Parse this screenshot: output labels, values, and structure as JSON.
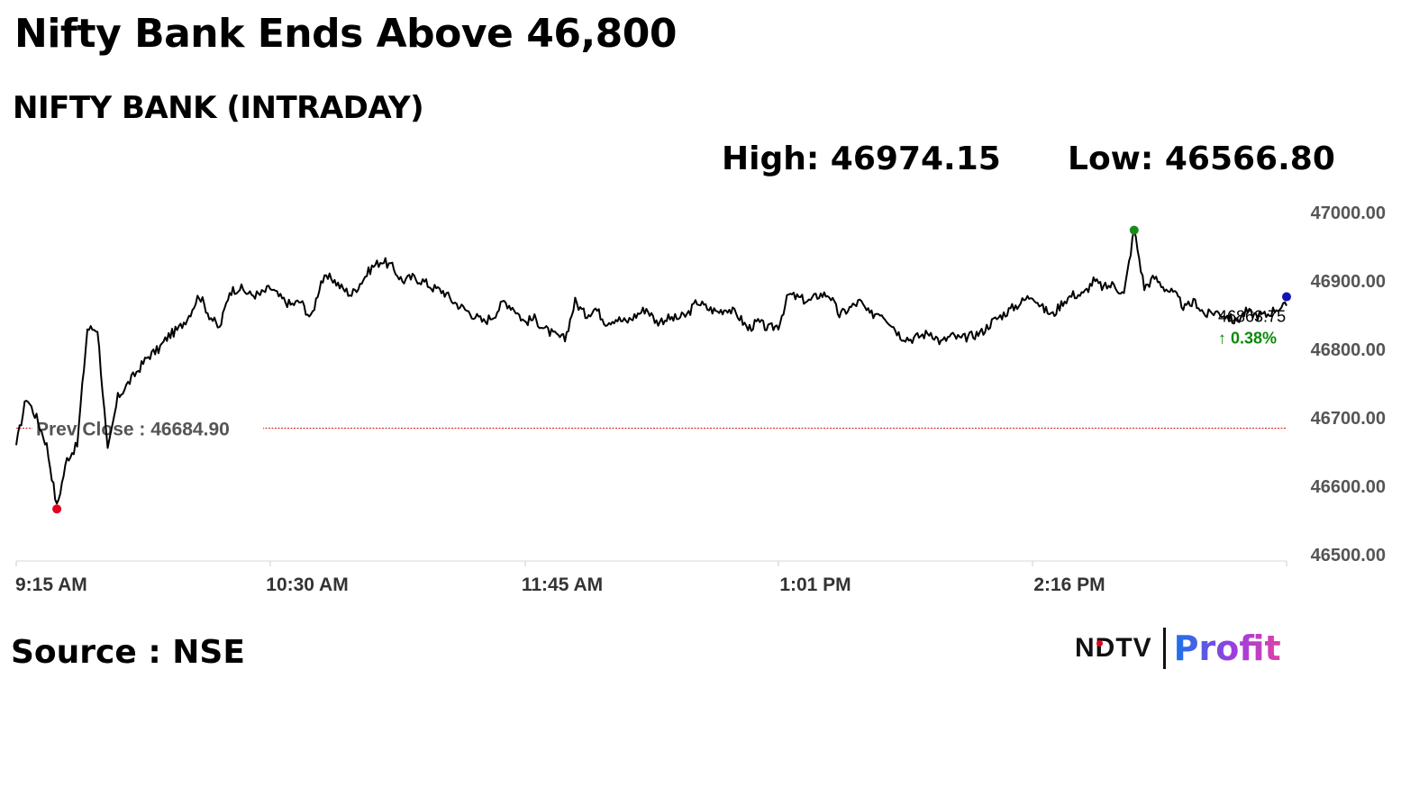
{
  "headline": "Nifty Bank Ends Above 46,800",
  "subhead": "NIFTY BANK (INTRADAY)",
  "stats": {
    "high": "High: 46974.15",
    "low": "Low: 46566.80"
  },
  "source": "Source : NSE",
  "logo": {
    "ndtv": "NDTV",
    "profit": "Profit"
  },
  "chart_data": {
    "type": "line",
    "title": "NIFTY BANK (INTRADAY)",
    "x_ticks": [
      "9:15 AM",
      "10:30 AM",
      "11:45 AM",
      "1:01 PM",
      "2:16 PM"
    ],
    "y_ticks": [
      "47000.00",
      "46900.00",
      "46800.00",
      "46700.00",
      "46600.00",
      "46500.00"
    ],
    "ylim": [
      46500,
      47000
    ],
    "prev_close": {
      "label": "Prev Close : 46684.90",
      "value": 46684.9
    },
    "last": {
      "price": "46863.75",
      "change": "↑ 0.38%",
      "value": 46863.75
    },
    "high_value": 46974.15,
    "low_value": 46566.8,
    "colors": {
      "line": "#000000",
      "high_marker": "#1a8a1a",
      "low_marker": "#e3001b",
      "last_marker": "#1414b4",
      "prev_close_line": "#d01818",
      "change": "#0a8a0a"
    },
    "series": [
      {
        "x": [
          "09:15",
          "09:18",
          "09:21",
          "09:24",
          "09:27",
          "09:30",
          "09:33",
          "09:36",
          "09:39",
          "09:42",
          "09:45",
          "09:48",
          "09:51",
          "09:54",
          "09:57",
          "10:00",
          "10:03",
          "10:06",
          "10:09",
          "10:12",
          "10:15",
          "10:18",
          "10:21",
          "10:24",
          "10:27",
          "10:30",
          "10:33",
          "10:36",
          "10:39",
          "10:42",
          "10:45",
          "10:48",
          "10:51",
          "10:54",
          "10:57",
          "11:00",
          "11:03",
          "11:06",
          "11:09",
          "11:12",
          "11:15",
          "11:18",
          "11:21",
          "11:24",
          "11:27",
          "11:30",
          "11:33",
          "11:36",
          "11:39",
          "11:42",
          "11:45",
          "11:48",
          "11:51",
          "11:54",
          "11:57",
          "12:00",
          "12:03",
          "12:06",
          "12:09",
          "12:12",
          "12:15",
          "12:18",
          "12:21",
          "12:24",
          "12:27",
          "12:30",
          "12:33",
          "12:36",
          "12:39",
          "12:42",
          "12:45",
          "12:48",
          "12:51",
          "12:54",
          "12:57",
          "13:00",
          "13:03",
          "13:06",
          "13:09",
          "13:12",
          "13:15",
          "13:18",
          "13:21",
          "13:24",
          "13:27",
          "13:30",
          "13:33",
          "13:36",
          "13:39",
          "13:42",
          "13:45",
          "13:48",
          "13:51",
          "13:54",
          "13:57",
          "14:00",
          "14:03",
          "14:06",
          "14:09",
          "14:12",
          "14:15",
          "14:18",
          "14:21",
          "14:24",
          "14:27",
          "14:30",
          "14:33",
          "14:36",
          "14:39",
          "14:42",
          "14:45",
          "14:48",
          "14:51",
          "14:54",
          "14:57",
          "15:00",
          "15:03",
          "15:06",
          "15:09",
          "15:12",
          "15:15",
          "15:18",
          "15:21",
          "15:24",
          "15:27",
          "15:30"
        ],
        "values": [
          46660,
          46730,
          46700,
          46660,
          46570,
          46640,
          46660,
          46830,
          46830,
          46650,
          46730,
          46750,
          46770,
          46790,
          46800,
          46820,
          46830,
          46850,
          46880,
          46850,
          46830,
          46885,
          46890,
          46880,
          46880,
          46890,
          46875,
          46865,
          46870,
          46845,
          46900,
          46905,
          46890,
          46880,
          46900,
          46920,
          46930,
          46920,
          46900,
          46905,
          46900,
          46890,
          46885,
          46870,
          46860,
          46850,
          46840,
          46850,
          46870,
          46860,
          46840,
          46845,
          46830,
          46820,
          46815,
          46870,
          46850,
          46860,
          46840,
          46845,
          46840,
          46850,
          46860,
          46840,
          46845,
          46845,
          46850,
          46870,
          46860,
          46855,
          46860,
          46850,
          46830,
          46840,
          46830,
          46835,
          46880,
          46875,
          46870,
          46880,
          46880,
          46850,
          46860,
          46870,
          46850,
          46855,
          46840,
          46820,
          46815,
          46820,
          46825,
          46810,
          46820,
          46815,
          46820,
          46825,
          46840,
          46850,
          46860,
          46870,
          46880,
          46860,
          46850,
          46870,
          46880,
          46880,
          46900,
          46890,
          46895,
          46880,
          46975,
          46890,
          46905,
          46890,
          46880,
          46860,
          46870,
          46850,
          46855,
          46850,
          46840,
          46855,
          46850,
          46850,
          46860,
          46863.75
        ]
      }
    ]
  }
}
